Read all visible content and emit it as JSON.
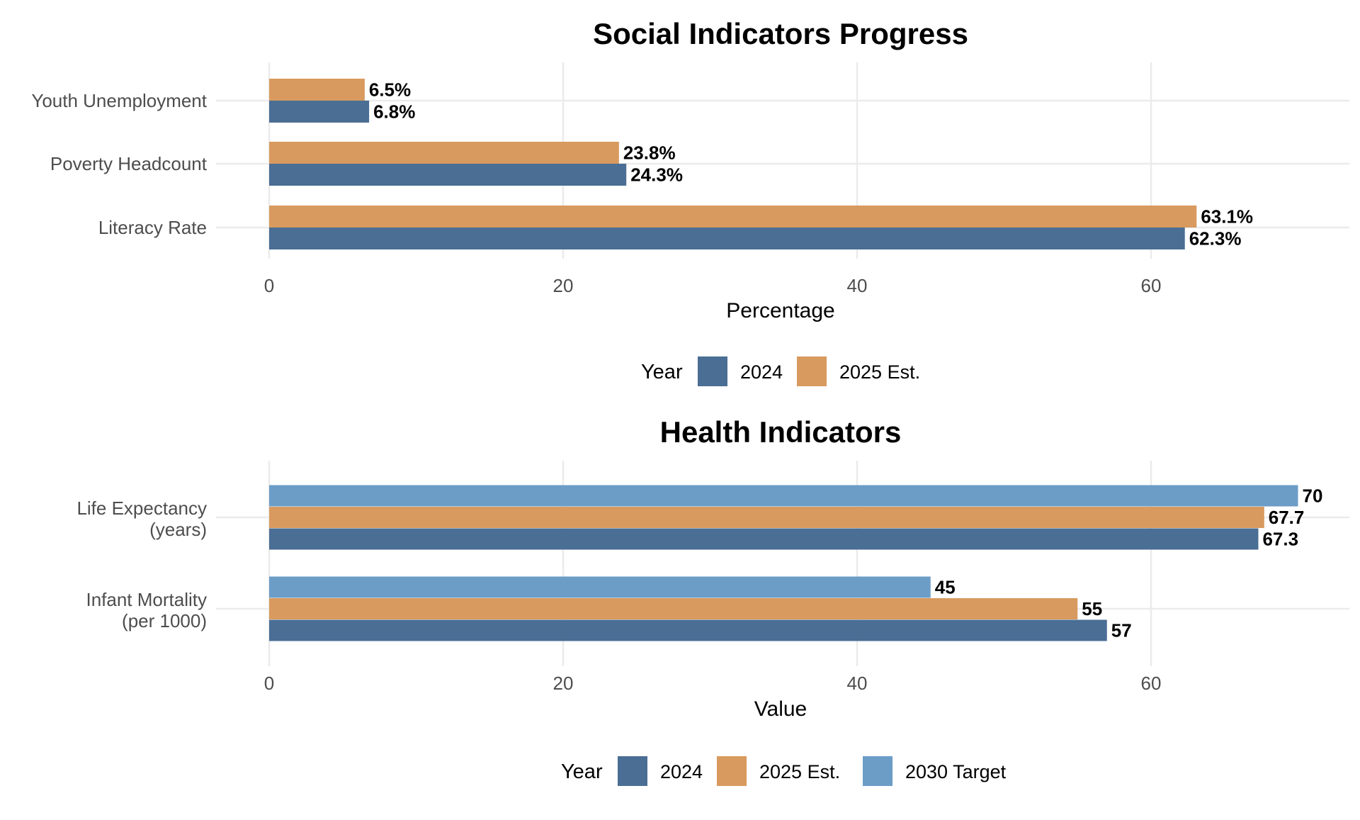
{
  "chart_data": [
    {
      "type": "bar",
      "orientation": "horizontal",
      "title": "Social Indicators Progress",
      "xlabel": "Percentage",
      "ylabel": "",
      "xlim": [
        0,
        73.5
      ],
      "ticks": [
        0,
        20,
        40,
        60
      ],
      "tick_labels": [
        "0",
        "20",
        "40",
        "60"
      ],
      "grid": true,
      "categories": [
        "Youth Unemployment",
        "Poverty Headcount",
        "Literacy Rate"
      ],
      "series": [
        {
          "name": "2024",
          "color": "#4A6E94",
          "values": [
            6.8,
            24.3,
            62.3
          ],
          "labels": [
            "6.8%",
            "24.3%",
            "62.3%"
          ]
        },
        {
          "name": "2025 Est.",
          "color": "#D89A5F",
          "values": [
            6.5,
            23.8,
            63.1
          ],
          "labels": [
            "6.5%",
            "23.8%",
            "63.1%"
          ]
        }
      ],
      "legend": {
        "title": "Year",
        "position": "bottom"
      }
    },
    {
      "type": "bar",
      "orientation": "horizontal",
      "title": "Health Indicators",
      "xlabel": "Value",
      "ylabel": "",
      "xlim": [
        0,
        73.5
      ],
      "ticks": [
        0,
        20,
        40,
        60
      ],
      "tick_labels": [
        "0",
        "20",
        "40",
        "60"
      ],
      "grid": true,
      "categories": [
        [
          "Life Expectancy",
          "(years)"
        ],
        [
          "Infant Mortality",
          "(per 1000)"
        ]
      ],
      "series": [
        {
          "name": "2024",
          "color": "#4A6E94",
          "values": [
            67.3,
            57
          ],
          "labels": [
            "67.3",
            "57"
          ]
        },
        {
          "name": "2025 Est.",
          "color": "#D89A5F",
          "values": [
            67.7,
            55
          ],
          "labels": [
            "67.7",
            "55"
          ]
        },
        {
          "name": "2030 Target",
          "color": "#6B9DC7",
          "values": [
            70,
            45
          ],
          "labels": [
            "70",
            "45"
          ]
        }
      ],
      "legend": {
        "title": "Year",
        "position": "bottom"
      }
    }
  ]
}
